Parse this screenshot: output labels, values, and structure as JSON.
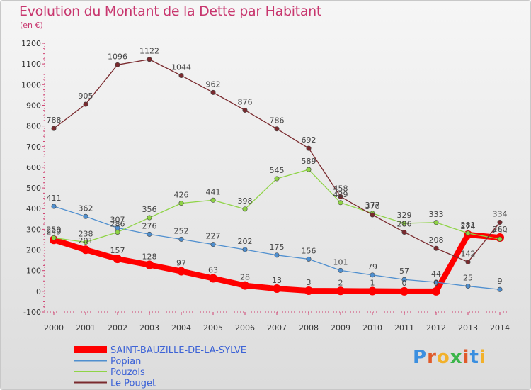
{
  "page": {
    "title": "Evolution du Montant de la Dette par Habitant",
    "unit": "(en €)",
    "logo": [
      "P",
      "r",
      "o",
      "x",
      "i",
      "t",
      "i"
    ],
    "logo_colors": [
      "#3b8fe0",
      "#e05a2a",
      "#f2b12b",
      "#3bb54a",
      "#e05a2a",
      "#3b8fe0",
      "#f2b12b"
    ]
  },
  "chart_data": {
    "type": "line",
    "x": [
      2000,
      2001,
      2002,
      2003,
      2004,
      2005,
      2006,
      2007,
      2008,
      2009,
      2010,
      2011,
      2012,
      2013,
      2014
    ],
    "ylim": [
      -100,
      1200
    ],
    "yticks": [
      -100,
      0,
      100,
      200,
      300,
      400,
      500,
      600,
      700,
      800,
      900,
      1000,
      1100,
      1200
    ],
    "grid": false,
    "legend_position": "bottom-left",
    "series": [
      {
        "name": "SAINT-BAUZILLE-DE-LA-SYLVE",
        "color": "#ff0000",
        "highlight": true,
        "values": [
          249,
          201,
          157,
          128,
          97,
          63,
          28,
          13,
          3,
          2,
          1,
          0,
          0,
          274,
          260
        ],
        "labels": [
          "249",
          "",
          "157",
          "128",
          "97",
          "63",
          "28",
          "13",
          "3",
          "2",
          "1",
          "0",
          "0",
          "274",
          "260"
        ]
      },
      {
        "name": "Popian",
        "color": "#4f8fcf",
        "highlight": false,
        "values": [
          411,
          362,
          307,
          276,
          252,
          227,
          202,
          175,
          156,
          101,
          79,
          57,
          44,
          25,
          9
        ],
        "labels": [
          "411",
          "362",
          "307",
          "276",
          "252",
          "227",
          "202",
          "175",
          "156",
          "101",
          "79",
          "57",
          "44",
          "25",
          "9"
        ]
      },
      {
        "name": "Pouzols",
        "color": "#8fd446",
        "highlight": false,
        "values": [
          259,
          238,
          286,
          356,
          426,
          441,
          398,
          545,
          589,
          429,
          377,
          329,
          333,
          281,
          253
        ],
        "labels": [
          "259",
          "238",
          "286",
          "356",
          "426",
          "441",
          "398",
          "545",
          "589",
          "429",
          "377",
          "329",
          "333",
          "281",
          "253"
        ]
      },
      {
        "name": "Le Pouget",
        "color": "#7a2a2e",
        "highlight": false,
        "values": [
          788,
          905,
          1096,
          1122,
          1044,
          962,
          876,
          786,
          692,
          458,
          370,
          286,
          208,
          142,
          334
        ],
        "labels": [
          "788",
          "905",
          "1096",
          "1122",
          "1044",
          "962",
          "876",
          "786",
          "692",
          "458",
          "370",
          "286",
          "208",
          "142",
          "334"
        ]
      }
    ],
    "extra_labels": [
      "201"
    ]
  }
}
